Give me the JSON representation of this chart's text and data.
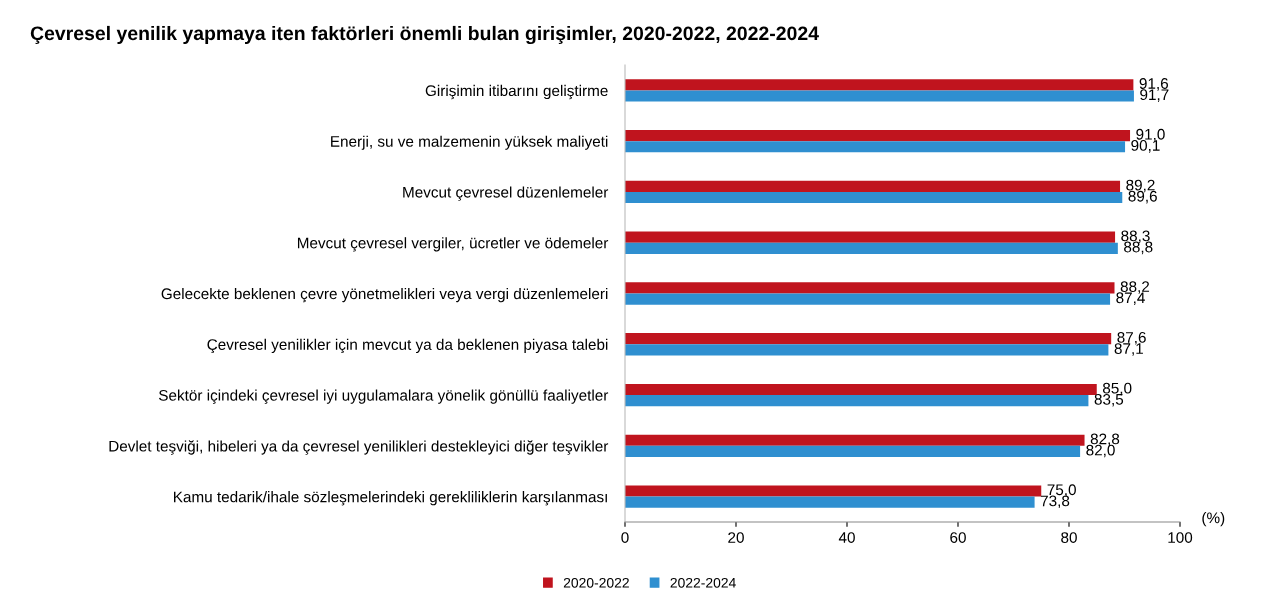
{
  "chart_data": {
    "type": "bar",
    "orientation": "horizontal",
    "title": "Çevresel yenilik yapmaya iten faktörleri önemli bulan girişimler, 2020-2022, 2022-2024",
    "xlabel": "(%)",
    "categories": [
      "Girişimin itibarını geliştirme",
      "Enerji, su ve malzemenin yüksek maliyeti",
      "Mevcut çevresel düzenlemeler",
      "Mevcut çevresel vergiler, ücretler ve ödemeler",
      "Gelecekte beklenen çevre yönetmelikleri veya vergi düzenlemeleri",
      "Çevresel yenilikler için mevcut ya da beklenen piyasa talebi",
      "Sektör içindeki çevresel iyi uygulamalara yönelik gönüllü faaliyetler",
      "Devlet teşviği, hibeleri ya da çevresel yenilikleri destekleyici diğer teşvikler",
      "Kamu tedarik/ihale sözleşmelerindeki gerekliliklerin karşılanması"
    ],
    "series": [
      {
        "name": "2020-2022",
        "color": "#c0141e",
        "values": [
          91.6,
          91.0,
          89.2,
          88.3,
          88.2,
          87.6,
          85.0,
          82.8,
          75.0
        ],
        "value_labels": [
          "91,6",
          "91,0",
          "89,2",
          "88,3",
          "88,2",
          "87,6",
          "85,0",
          "82,8",
          "75,0"
        ]
      },
      {
        "name": "2022-2024",
        "color": "#2f8fd0",
        "values": [
          91.7,
          90.1,
          89.6,
          88.8,
          87.4,
          87.1,
          83.5,
          82.0,
          73.8
        ],
        "value_labels": [
          "91,7",
          "90,1",
          "89,6",
          "88,8",
          "87,4",
          "87,1",
          "83,5",
          "82,0",
          "73,8"
        ]
      }
    ],
    "xlim": [
      0,
      100
    ],
    "xticks": [
      0,
      20,
      40,
      60,
      80,
      100
    ],
    "grid": false,
    "legend": "bottom"
  }
}
